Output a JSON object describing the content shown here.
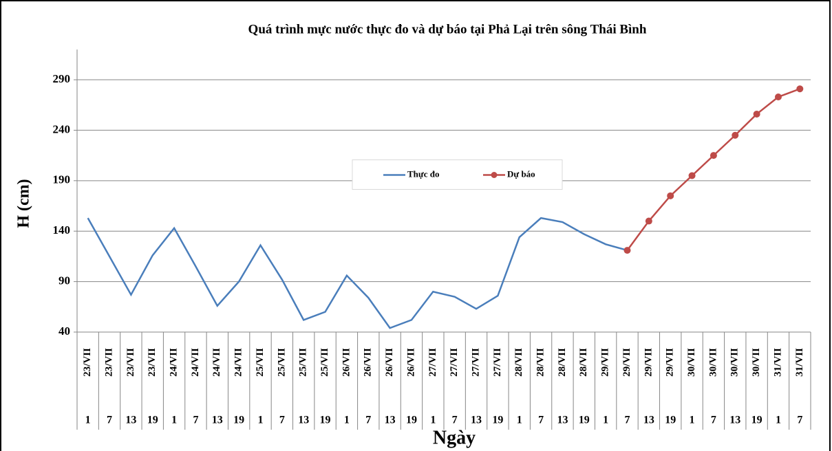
{
  "chart_data": {
    "type": "line",
    "title": "Quá trình mực nước thực đo và dự báo tại Phả Lại trên sông Thái Bình",
    "y_label": "H (cm)",
    "x_label": "Ngày",
    "categories": [
      "23/VII",
      "23/VII",
      "23/VII",
      "23/VII",
      "24/VII",
      "24/VII",
      "24/VII",
      "24/VII",
      "25/VII",
      "25/VII",
      "25/VII",
      "25/VII",
      "26/VII",
      "26/VII",
      "26/VII",
      "26/VII",
      "27/VII",
      "27/VII",
      "27/VII",
      "27/VII",
      "28/VII",
      "28/VII",
      "28/VII",
      "28/VII",
      "29/VII",
      "29/VII",
      "29/VII",
      "29/VII",
      "30/VII",
      "30/VII",
      "30/VII",
      "30/VII",
      "31/VII",
      "31/VII"
    ],
    "hours": [
      "1",
      "7",
      "13",
      "19",
      "1",
      "7",
      "13",
      "19",
      "1",
      "7",
      "13",
      "19",
      "1",
      "7",
      "13",
      "19",
      "1",
      "7",
      "13",
      "19",
      "1",
      "7",
      "13",
      "19",
      "1",
      "7",
      "13",
      "19",
      "1",
      "7",
      "13",
      "19",
      "1",
      "7"
    ],
    "series": [
      {
        "name": "Thực đo",
        "color": "#4a7ebb",
        "marker": false,
        "values": [
          153,
          115,
          77,
          116,
          143,
          105,
          66,
          90,
          126,
          92,
          52,
          60,
          96,
          74,
          44,
          52,
          80,
          75,
          63,
          76,
          134,
          153,
          149,
          137,
          127,
          121,
          null,
          null,
          null,
          null,
          null,
          null,
          null,
          null
        ]
      },
      {
        "name": "Dự báo",
        "color": "#be4b48",
        "marker": true,
        "values": [
          null,
          null,
          null,
          null,
          null,
          null,
          null,
          null,
          null,
          null,
          null,
          null,
          null,
          null,
          null,
          null,
          null,
          null,
          null,
          null,
          null,
          null,
          null,
          null,
          null,
          121,
          150,
          175,
          195,
          215,
          235,
          256,
          273,
          281
        ]
      }
    ],
    "ylim": [
      40,
      320
    ],
    "yticks": [
      40,
      90,
      140,
      190,
      240,
      290
    ],
    "grid": true,
    "legend_position": "center"
  }
}
